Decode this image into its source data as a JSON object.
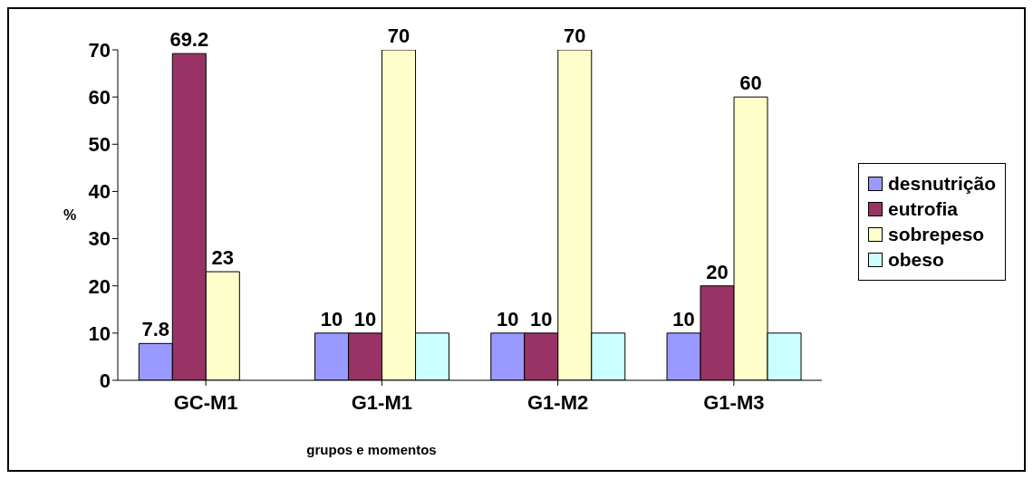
{
  "chart_data": {
    "type": "bar",
    "xlabel": "grupos e momentos",
    "ylabel": "%",
    "categories": [
      "GC-M1",
      "G1-M1",
      "G1-M2",
      "G1-M3"
    ],
    "series": [
      {
        "name": "desnutrição",
        "color": "#9999ff",
        "values": [
          7.8,
          10,
          10,
          10
        ],
        "value_labels": [
          "7.8",
          "10",
          "10",
          "10"
        ]
      },
      {
        "name": "eutrofia",
        "color": "#993366",
        "values": [
          69.2,
          10,
          10,
          20
        ],
        "value_labels": [
          "69.2",
          "10",
          "10",
          "20"
        ]
      },
      {
        "name": "sobrepeso",
        "color": "#ffffcc",
        "values": [
          23,
          70,
          70,
          60
        ],
        "value_labels": [
          "23",
          "70",
          "70",
          "60"
        ]
      },
      {
        "name": "obeso",
        "color": "#ccffff",
        "values": [
          null,
          10,
          10,
          10
        ]
      }
    ],
    "ylim": [
      0,
      70
    ],
    "yticks": [
      0,
      10,
      20,
      30,
      40,
      50,
      60,
      70
    ],
    "legend": "right"
  }
}
